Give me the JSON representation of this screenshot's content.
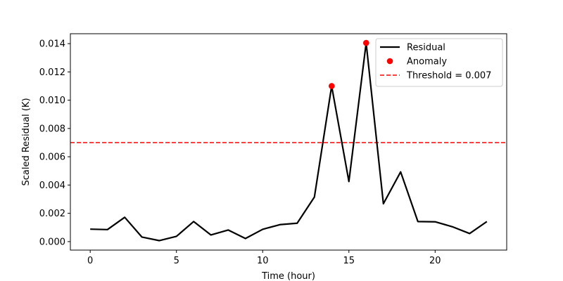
{
  "chart_data": {
    "type": "line",
    "xlabel": "Time (hour)",
    "ylabel": "Scaled Residual (K)",
    "xlim": [
      -1.15,
      24.15
    ],
    "ylim": [
      -0.0006,
      0.0147
    ],
    "x_ticks": [
      0,
      5,
      10,
      15,
      20
    ],
    "y_ticks": [
      0.0,
      0.002,
      0.004,
      0.006,
      0.008,
      0.01,
      0.012,
      0.014
    ],
    "y_tick_labels": [
      "0.000",
      "0.002",
      "0.004",
      "0.006",
      "0.008",
      "0.010",
      "0.012",
      "0.014"
    ],
    "grid": false,
    "legend_position": "top-right",
    "series": [
      {
        "name": "Residual",
        "type": "line",
        "color": "#000000",
        "x": [
          0,
          1,
          2,
          3,
          4,
          5,
          6,
          7,
          8,
          9,
          10,
          11,
          12,
          13,
          14,
          15,
          16,
          17,
          18,
          19,
          20,
          21,
          22,
          23
        ],
        "y": [
          0.00088,
          0.00085,
          0.00172,
          0.00032,
          7e-05,
          0.00037,
          0.00142,
          0.00047,
          0.00082,
          0.00022,
          0.00087,
          0.0012,
          0.0013,
          0.00315,
          0.011,
          0.00425,
          0.01405,
          0.00268,
          0.00493,
          0.00142,
          0.0014,
          0.00105,
          0.00057,
          0.00142
        ]
      },
      {
        "name": "Anomaly",
        "type": "scatter",
        "color": "#ff0000",
        "x": [
          14,
          16
        ],
        "y": [
          0.011,
          0.01405
        ]
      }
    ],
    "threshold": {
      "label": "Threshold = 0.007",
      "value": 0.007,
      "color": "#ff0000",
      "style": "dashed"
    }
  }
}
